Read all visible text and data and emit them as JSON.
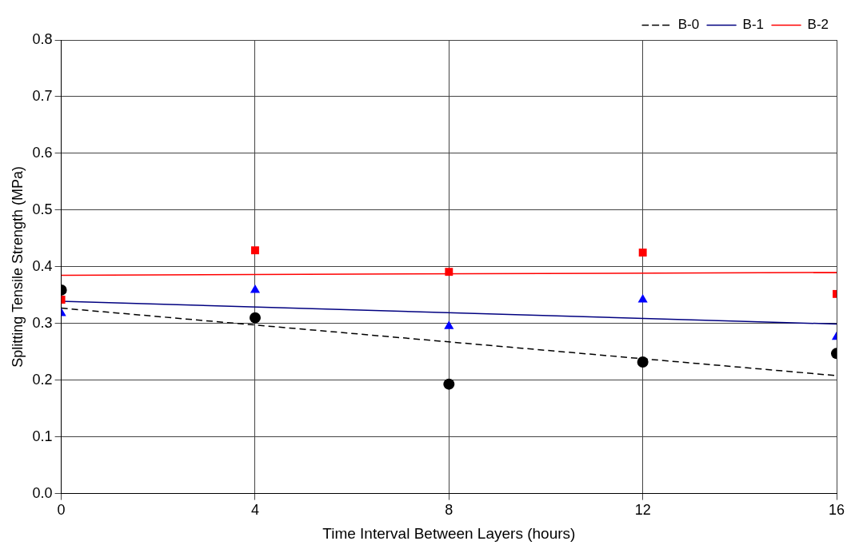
{
  "chart_data": {
    "type": "scatter",
    "xlabel": "Time Interval Between Layers (hours)",
    "ylabel": "Splitting Tensile Strength (MPa)",
    "xlim": [
      0,
      16
    ],
    "xticks": [
      0,
      4,
      8,
      12,
      16
    ],
    "ylim": [
      0,
      0.8
    ],
    "yticks": [
      {
        "value": 0,
        "label": "0.0"
      },
      0.1,
      0.2,
      0.3,
      0.4,
      0.5,
      0.6,
      0.7,
      0.8
    ],
    "grid": true,
    "legend": "top right",
    "series": [
      {
        "type": "scatter",
        "color": "#000000",
        "marker": "circle",
        "x": [
          0,
          4,
          8,
          12,
          16
        ],
        "values": [
          0.359,
          0.31,
          0.193,
          0.232,
          0.247
        ]
      },
      {
        "type": "scatter",
        "color": "#0000ff",
        "marker": "triangle",
        "x": [
          0,
          4,
          8,
          12,
          16
        ],
        "values": [
          0.318,
          0.359,
          0.295,
          0.342,
          0.276
        ]
      },
      {
        "type": "scatter",
        "color": "#ff0000",
        "marker": "square",
        "x": [
          0,
          4,
          8,
          12,
          16
        ],
        "values": [
          0.342,
          0.429,
          0.391,
          0.425,
          0.352
        ]
      },
      {
        "type": "line",
        "name": "B-0",
        "color": "#000000",
        "marker": "none",
        "line_style": "dashed",
        "x": [
          0,
          16
        ],
        "values": [
          0.327,
          0.208
        ]
      },
      {
        "type": "line",
        "name": "B-1",
        "color": "#000080",
        "marker": "none",
        "line_style": "solid",
        "x": [
          0,
          16
        ],
        "values": [
          0.339,
          0.299
        ]
      },
      {
        "type": "line",
        "name": "B-2",
        "color": "#ff0000",
        "marker": "none",
        "line_style": "solid",
        "x": [
          0,
          16
        ],
        "values": [
          0.385,
          0.39
        ]
      }
    ]
  }
}
